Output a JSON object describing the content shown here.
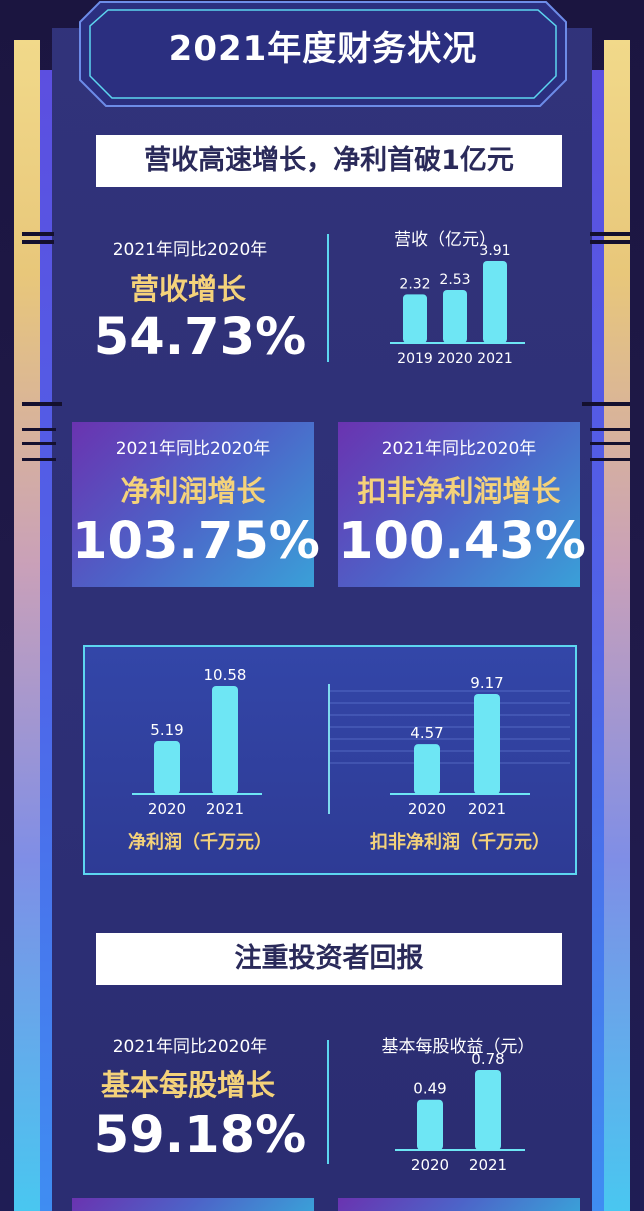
{
  "title": "2021年度财务状况",
  "sections": [
    {
      "banner": "营收高速增长，净利首破1亿元"
    },
    {
      "banner": "注重投资者回报"
    }
  ],
  "stats": {
    "revenue": {
      "caption": "2021年同比2020年",
      "label": "营收增长",
      "value": "54.73%"
    },
    "net_profit": {
      "caption": "2021年同比2020年",
      "label": "净利润增长",
      "value": "103.75%"
    },
    "deducted_net_profit": {
      "caption": "2021年同比2020年",
      "label": "扣非净利润增长",
      "value": "100.43%"
    },
    "eps": {
      "caption": "2021年同比2020年",
      "label": "基本每股增长",
      "value": "59.18%"
    }
  },
  "colors": {
    "bar": "#6ee6f4",
    "panel": "#2d2f78",
    "accent_text": "#f4d27a"
  },
  "chart_data": [
    {
      "type": "bar",
      "title": "营收（亿元）",
      "categories": [
        "2019",
        "2020",
        "2021"
      ],
      "values": [
        2.32,
        2.53,
        3.91
      ]
    },
    {
      "type": "bar",
      "title": "净利润（千万元）",
      "categories": [
        "2020",
        "2021"
      ],
      "values": [
        5.19,
        10.58
      ]
    },
    {
      "type": "bar",
      "title": "扣非净利润（千万元）",
      "categories": [
        "2020",
        "2021"
      ],
      "values": [
        4.57,
        9.17
      ]
    },
    {
      "type": "bar",
      "title": "基本每股收益（元）",
      "categories": [
        "2020",
        "2021"
      ],
      "values": [
        0.49,
        0.78
      ]
    }
  ]
}
